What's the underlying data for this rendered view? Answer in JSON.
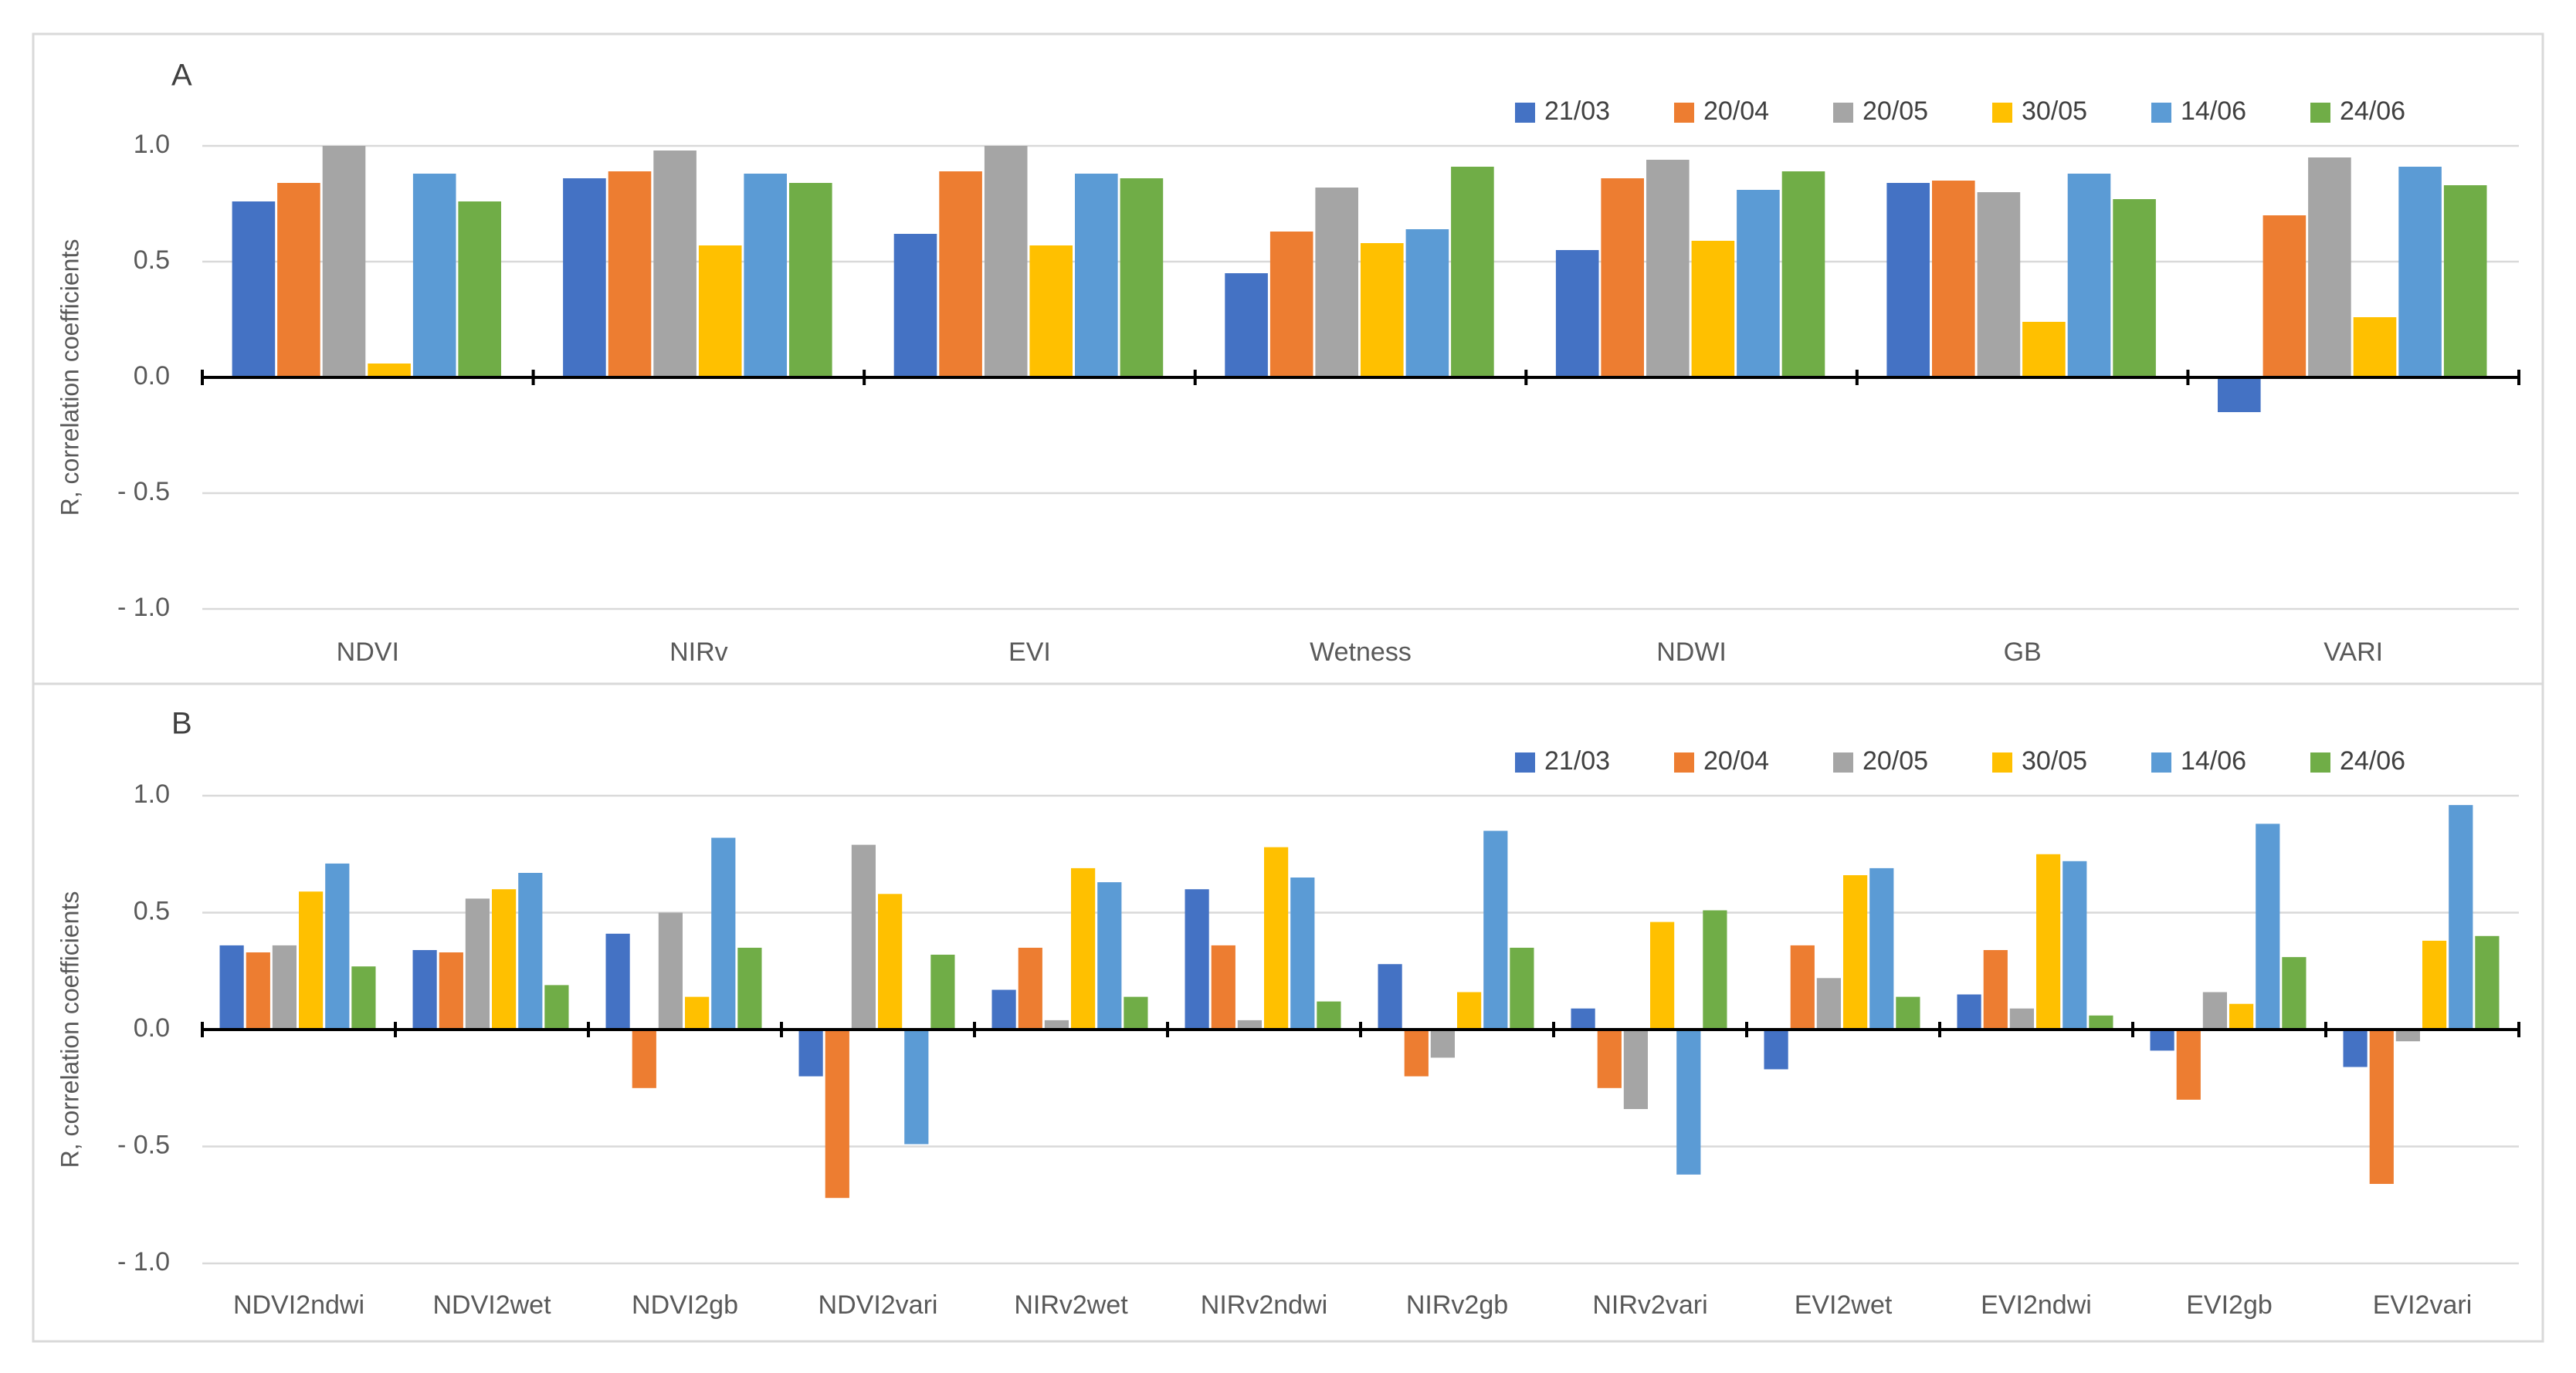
{
  "colors": [
    "#4472C4",
    "#ED7D31",
    "#A5A5A5",
    "#FFC000",
    "#5B9BD5",
    "#70AD47"
  ],
  "chart_data": [
    {
      "type": "bar",
      "panel_label": "A",
      "title": "",
      "xlabel": "",
      "ylabel": "R, correlation coefficients",
      "ylim": [
        -1.0,
        1.0
      ],
      "yticks": [
        1.0,
        0.5,
        0.0,
        -0.5,
        -1.0
      ],
      "ytick_labels": [
        "1.0",
        "0.5",
        "0.0",
        "- 0.5",
        "- 1.0"
      ],
      "grid": true,
      "legend_position": "top-right",
      "categories": [
        "NDVI",
        "NIRv",
        "EVI",
        "Wetness",
        "NDWI",
        "GB",
        "VARI"
      ],
      "series": [
        {
          "name": "21/03",
          "values": [
            0.76,
            0.86,
            0.62,
            0.45,
            0.55,
            0.84,
            -0.15
          ]
        },
        {
          "name": "20/04",
          "values": [
            0.84,
            0.89,
            0.89,
            0.63,
            0.86,
            0.85,
            0.7
          ]
        },
        {
          "name": "20/05",
          "values": [
            1.0,
            0.98,
            1.0,
            0.82,
            0.94,
            0.8,
            0.95
          ]
        },
        {
          "name": "30/05",
          "values": [
            0.06,
            0.57,
            0.57,
            0.58,
            0.59,
            0.24,
            0.26
          ]
        },
        {
          "name": "14/06",
          "values": [
            0.88,
            0.88,
            0.88,
            0.64,
            0.81,
            0.88,
            0.91
          ]
        },
        {
          "name": "24/06",
          "values": [
            0.76,
            0.84,
            0.86,
            0.91,
            0.89,
            0.77,
            0.83
          ]
        }
      ]
    },
    {
      "type": "bar",
      "panel_label": "B",
      "title": "",
      "xlabel": "",
      "ylabel": "R, correlation coefficients",
      "ylim": [
        -1.0,
        1.0
      ],
      "yticks": [
        1.0,
        0.5,
        0.0,
        -0.5,
        -1.0
      ],
      "ytick_labels": [
        "1.0",
        "0.5",
        "0.0",
        "- 0.5",
        "- 1.0"
      ],
      "grid": true,
      "legend_position": "top-right",
      "categories": [
        "NDVI2ndwi",
        "NDVI2wet",
        "NDVI2gb",
        "NDVI2vari",
        "NIRv2wet",
        "NIRv2ndwi",
        "NIRv2gb",
        "NIRv2vari",
        "EVI2wet",
        "EVI2ndwi",
        "EVI2gb",
        "EVI2vari"
      ],
      "series": [
        {
          "name": "21/03",
          "values": [
            0.36,
            0.34,
            0.41,
            -0.2,
            0.17,
            0.6,
            0.28,
            0.09,
            -0.17,
            0.15,
            -0.09,
            -0.16
          ]
        },
        {
          "name": "20/04",
          "values": [
            0.33,
            0.33,
            -0.25,
            -0.72,
            0.35,
            0.36,
            -0.2,
            -0.25,
            0.36,
            0.34,
            -0.3,
            -0.66
          ]
        },
        {
          "name": "20/05",
          "values": [
            0.36,
            0.56,
            0.5,
            0.79,
            0.04,
            0.04,
            -0.12,
            -0.34,
            0.22,
            0.09,
            0.16,
            -0.05
          ]
        },
        {
          "name": "30/05",
          "values": [
            0.59,
            0.6,
            0.14,
            0.58,
            0.69,
            0.78,
            0.16,
            0.46,
            0.66,
            0.75,
            0.11,
            0.38
          ]
        },
        {
          "name": "14/06",
          "values": [
            0.71,
            0.67,
            0.82,
            -0.49,
            0.63,
            0.65,
            0.85,
            -0.62,
            0.69,
            0.72,
            0.88,
            0.96
          ]
        },
        {
          "name": "24/06",
          "values": [
            0.27,
            0.19,
            0.35,
            0.32,
            0.14,
            0.12,
            0.35,
            0.51,
            0.14,
            0.06,
            0.31,
            0.4
          ]
        }
      ]
    }
  ]
}
